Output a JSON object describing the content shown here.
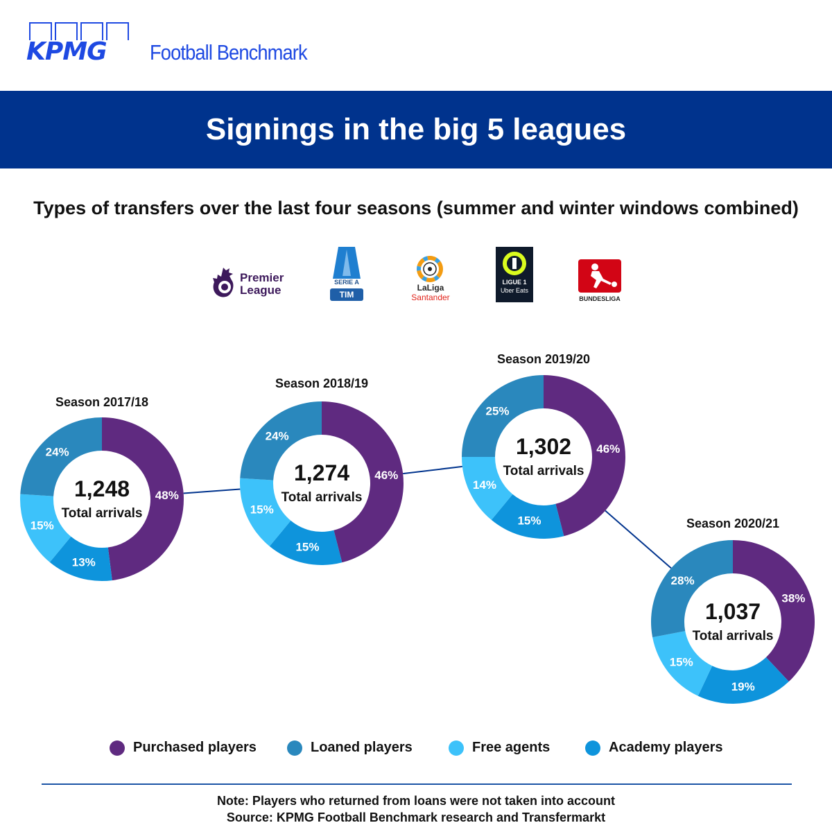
{
  "header": {
    "kpmg": "KPMG",
    "brand": "Football Benchmark",
    "banner_title": "Signings in the big 5 leagues",
    "subtitle": "Types of transfers over the last four seasons (summer and winter windows combined)"
  },
  "leagues": [
    {
      "name": "Premier League",
      "lines": [
        "Premier",
        "League"
      ]
    },
    {
      "name": "Serie A TIM",
      "lines": [
        "SERIE A",
        "TIM"
      ]
    },
    {
      "name": "LaLiga Santander",
      "lines": [
        "LaLiga",
        "Santander"
      ]
    },
    {
      "name": "Ligue 1 Uber Eats",
      "lines": [
        "LIGUE 1",
        "Uber Eats"
      ]
    },
    {
      "name": "Bundesliga",
      "lines": [
        "BUNDESLIGA"
      ]
    }
  ],
  "colors": {
    "brand_blue": "#00338d",
    "purchased": "#5f2a80",
    "loaned": "#2a88bd",
    "free": "#3dc2fa",
    "academy": "#0e94dc"
  },
  "chart_data": {
    "type": "pie",
    "center_label": "Total arrivals",
    "categories": [
      "Purchased players",
      "Loaned players",
      "Free agents",
      "Academy players"
    ],
    "seasons": [
      {
        "label": "Season 2017/18",
        "total": "1,248",
        "values": {
          "Purchased players": 48,
          "Academy players": 13,
          "Free agents": 15,
          "Loaned players": 24
        }
      },
      {
        "label": "Season 2018/19",
        "total": "1,274",
        "values": {
          "Purchased players": 46,
          "Academy players": 15,
          "Free agents": 15,
          "Loaned players": 24
        }
      },
      {
        "label": "Season 2019/20",
        "total": "1,302",
        "values": {
          "Purchased players": 46,
          "Academy players": 15,
          "Free agents": 14,
          "Loaned players": 25
        }
      },
      {
        "label": "Season 2020/21",
        "total": "1,037",
        "values": {
          "Purchased players": 38,
          "Academy players": 19,
          "Free agents": 15,
          "Loaned players": 28
        }
      }
    ]
  },
  "footer": {
    "note": "Note: Players who returned from loans were not taken into account",
    "source": "Source: KPMG Football Benchmark research and Transfermarkt"
  }
}
